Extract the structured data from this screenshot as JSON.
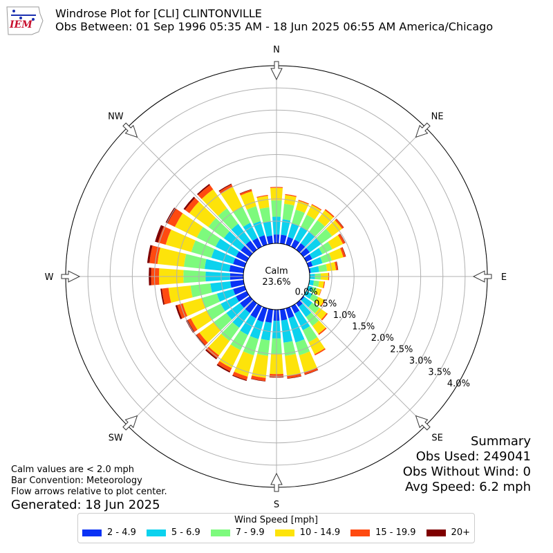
{
  "header": {
    "title_line1": "Windrose Plot for [CLI] CLINTONVILLE",
    "title_line2": "Obs Between: 01 Sep 1996 05:35 AM - 18 Jun 2025 06:55 AM America/Chicago",
    "logo_text": "IEM"
  },
  "summary": {
    "heading": "Summary",
    "obs_used": "Obs Used: 249041",
    "obs_without_wind": "Obs Without Wind: 0",
    "avg_speed": "Avg Speed: 6.2 mph"
  },
  "notes": {
    "calm_note": "Calm values are < 2.0 mph",
    "bar_convention": "Bar Convention: Meteorology",
    "flow_arrows": "Flow arrows relative to plot center.",
    "generated": "Generated: 18 Jun 2025"
  },
  "colors": {
    "2-4.9": "#0a32f5",
    "5-6.9": "#0cd2ee",
    "7-9.9": "#7dfa7d",
    "10-14.9": "#fde30a",
    "15-19.9": "#ff4a10",
    "20+": "#7f0000"
  },
  "chart_data": {
    "type": "windrose",
    "calm_label": "Calm",
    "calm_percent": "23.6%",
    "legend_title": "Wind Speed [mph]",
    "bins": [
      "2 - 4.9",
      "5 - 6.9",
      "7 - 9.9",
      "10 - 14.9",
      "15 - 19.9",
      "20+"
    ],
    "bin_keys": [
      "2-4.9",
      "5-6.9",
      "7-9.9",
      "10-14.9",
      "15-19.9",
      "20+"
    ],
    "radial_ticks": [
      0.0,
      0.5,
      1.0,
      1.5,
      2.0,
      2.5,
      3.0,
      3.5,
      4.0
    ],
    "radial_tick_labels": [
      "0.0%",
      "0.5%",
      "1.0%",
      "1.5%",
      "2.0%",
      "2.5%",
      "3.0%",
      "3.5%",
      "4.0%"
    ],
    "rlim": [
      0,
      4.0
    ],
    "compass_labels": [
      {
        "label": "N",
        "deg": 0
      },
      {
        "label": "NE",
        "deg": 45
      },
      {
        "label": "E",
        "deg": 90
      },
      {
        "label": "SE",
        "deg": 135
      },
      {
        "label": "S",
        "deg": 180
      },
      {
        "label": "SW",
        "deg": 225
      },
      {
        "label": "W",
        "deg": 270
      },
      {
        "label": "NW",
        "deg": 315
      }
    ],
    "directions_deg": [
      0,
      10,
      20,
      30,
      40,
      50,
      60,
      70,
      80,
      90,
      100,
      110,
      120,
      130,
      140,
      150,
      160,
      170,
      180,
      190,
      200,
      210,
      220,
      230,
      240,
      250,
      260,
      270,
      280,
      290,
      300,
      310,
      320,
      330,
      340,
      350
    ],
    "cumulative_percent": [
      [
        0.2,
        0.6,
        0.97,
        1.25,
        1.27,
        1.27
      ],
      [
        0.2,
        0.55,
        0.9,
        1.1,
        1.12,
        1.12
      ],
      [
        0.18,
        0.5,
        0.82,
        1.03,
        1.05,
        1.05
      ],
      [
        0.18,
        0.5,
        0.8,
        1.05,
        1.07,
        1.07
      ],
      [
        0.18,
        0.5,
        0.82,
        1.1,
        1.13,
        1.13
      ],
      [
        0.18,
        0.5,
        0.8,
        1.08,
        1.12,
        1.13
      ],
      [
        0.15,
        0.4,
        0.65,
        0.92,
        0.97,
        0.98
      ],
      [
        0.1,
        0.33,
        0.55,
        0.82,
        0.87,
        0.88
      ],
      [
        0.03,
        0.22,
        0.4,
        0.6,
        0.64,
        0.65
      ],
      [
        0.0,
        0.12,
        0.25,
        0.42,
        0.44,
        0.44
      ],
      [
        0.0,
        0.1,
        0.22,
        0.33,
        0.35,
        0.35
      ],
      [
        0.0,
        0.1,
        0.2,
        0.3,
        0.31,
        0.31
      ],
      [
        0.0,
        0.15,
        0.3,
        0.45,
        0.47,
        0.47
      ],
      [
        0.03,
        0.25,
        0.45,
        0.65,
        0.68,
        0.68
      ],
      [
        0.1,
        0.38,
        0.63,
        0.85,
        0.88,
        0.88
      ],
      [
        0.18,
        0.6,
        0.9,
        1.2,
        1.23,
        1.23
      ],
      [
        0.23,
        0.8,
        1.1,
        1.5,
        1.55,
        1.56
      ],
      [
        0.25,
        0.75,
        1.05,
        1.5,
        1.56,
        1.57
      ],
      [
        0.25,
        0.65,
        1.0,
        1.45,
        1.52,
        1.53
      ],
      [
        0.3,
        0.7,
        1.05,
        1.55,
        1.62,
        1.63
      ],
      [
        0.32,
        0.72,
        1.1,
        1.6,
        1.68,
        1.7
      ],
      [
        0.3,
        0.72,
        1.1,
        1.55,
        1.63,
        1.66
      ],
      [
        0.27,
        0.68,
        1.05,
        1.45,
        1.53,
        1.56
      ],
      [
        0.27,
        0.65,
        1.0,
        1.4,
        1.48,
        1.51
      ],
      [
        0.27,
        0.65,
        1.0,
        1.4,
        1.48,
        1.52
      ],
      [
        0.27,
        0.65,
        1.0,
        1.45,
        1.58,
        1.62
      ],
      [
        0.3,
        0.75,
        1.2,
        1.7,
        1.85,
        1.88
      ],
      [
        0.3,
        0.85,
        1.35,
        1.9,
        2.08,
        2.13
      ],
      [
        0.32,
        0.88,
        1.35,
        1.95,
        2.13,
        2.18
      ],
      [
        0.27,
        0.78,
        1.25,
        1.85,
        2.03,
        2.1
      ],
      [
        0.27,
        0.78,
        1.25,
        1.8,
        1.98,
        2.03
      ],
      [
        0.25,
        0.72,
        1.15,
        1.68,
        1.8,
        1.84
      ],
      [
        0.25,
        0.72,
        1.15,
        1.68,
        1.8,
        1.83
      ],
      [
        0.22,
        0.6,
        1.0,
        1.5,
        1.56,
        1.58
      ],
      [
        0.22,
        0.55,
        0.9,
        1.25,
        1.29,
        1.3
      ],
      [
        0.18,
        0.5,
        0.82,
        1.08,
        1.1,
        1.1
      ]
    ]
  }
}
